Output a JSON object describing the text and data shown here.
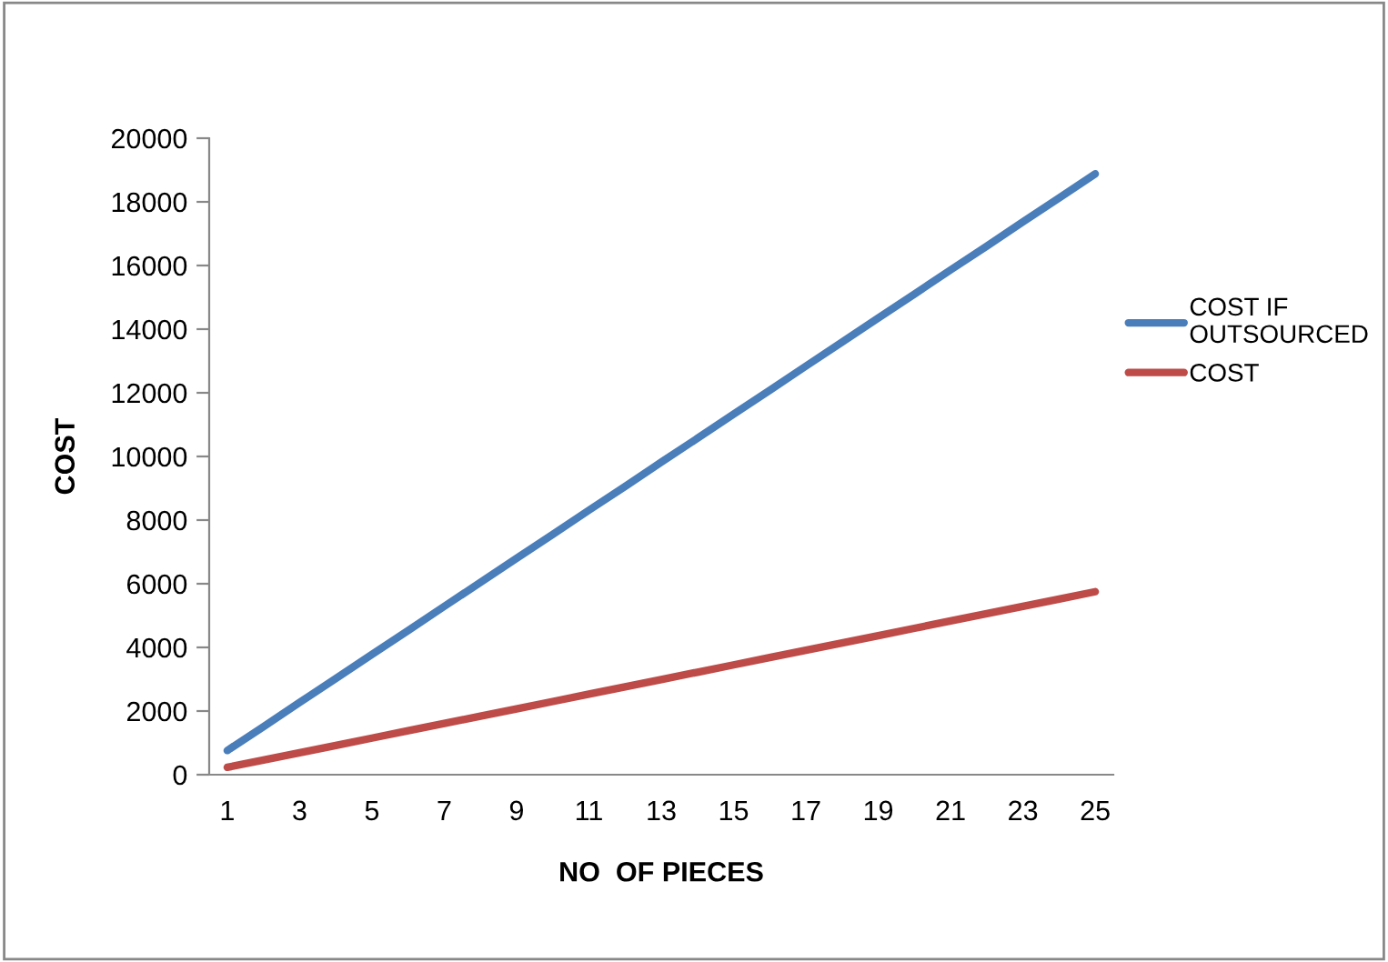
{
  "chart_data": {
    "type": "line",
    "xlabel": "NO  OF PIECES",
    "ylabel": "COST",
    "categories": [
      "1",
      null,
      "3",
      null,
      "5",
      null,
      "7",
      null,
      "9",
      null,
      "11",
      null,
      "13",
      null,
      "15",
      null,
      "17",
      null,
      "19",
      null,
      "21",
      null,
      "23",
      null,
      "25"
    ],
    "series": [
      {
        "name": "COST IF\nOUTSOURCED",
        "color": "#4a7ebb",
        "values": [
          760,
          1510,
          2270,
          3020,
          3780,
          4530,
          5290,
          6040,
          6800,
          7550,
          8310,
          9060,
          9820,
          10570,
          11330,
          12080,
          12840,
          13590,
          14350,
          15100,
          15860,
          16610,
          17370,
          18120,
          18880
        ]
      },
      {
        "name": "COST",
        "color": "#be4b48",
        "values": [
          230,
          460,
          690,
          920,
          1150,
          1380,
          1610,
          1840,
          2070,
          2300,
          2530,
          2760,
          2990,
          3220,
          3450,
          3680,
          3910,
          4140,
          4370,
          4600,
          4830,
          5060,
          5290,
          5520,
          5750
        ]
      }
    ],
    "ylim": [
      0,
      20000
    ],
    "yticks": [
      0,
      2000,
      4000,
      6000,
      8000,
      10000,
      12000,
      14000,
      16000,
      18000,
      20000
    ],
    "grid": false,
    "legend": "right",
    "marker": "none",
    "line_style": "solid"
  }
}
